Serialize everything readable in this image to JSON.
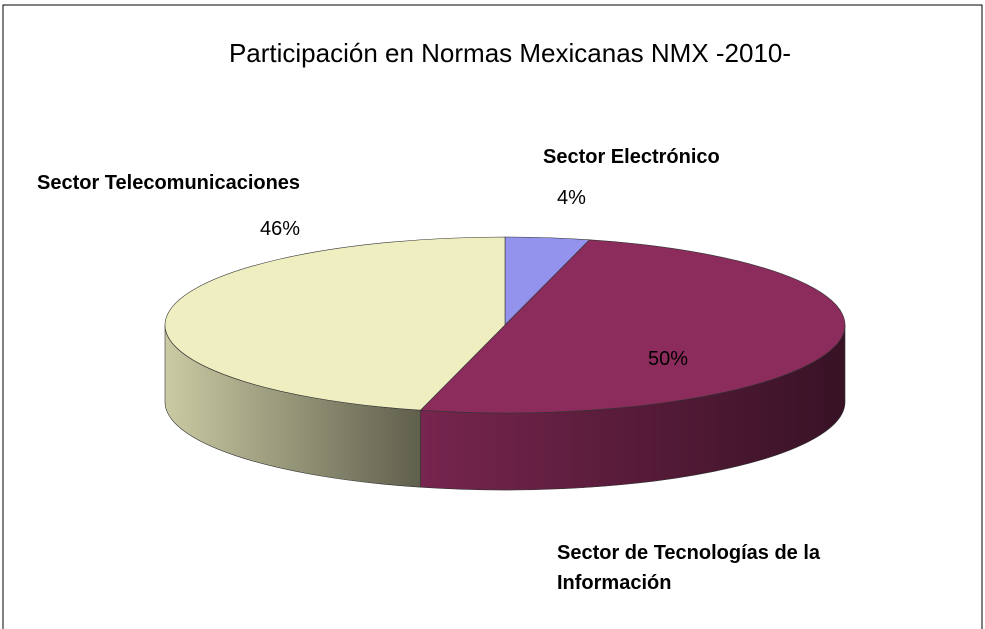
{
  "chart_data": {
    "type": "pie",
    "title": "Participación en Normas Mexicanas NMX -2010-",
    "categories": [
      "Sector Electrónico",
      "Sector de Tecnologías de la Información",
      "Sector Telecomunicaciones"
    ],
    "values": [
      4,
      50,
      46
    ],
    "value_labels": [
      "4%",
      "50%",
      "46%"
    ],
    "colors": [
      "#9393ee",
      "#8c2c5c",
      "#eeeec0"
    ]
  }
}
